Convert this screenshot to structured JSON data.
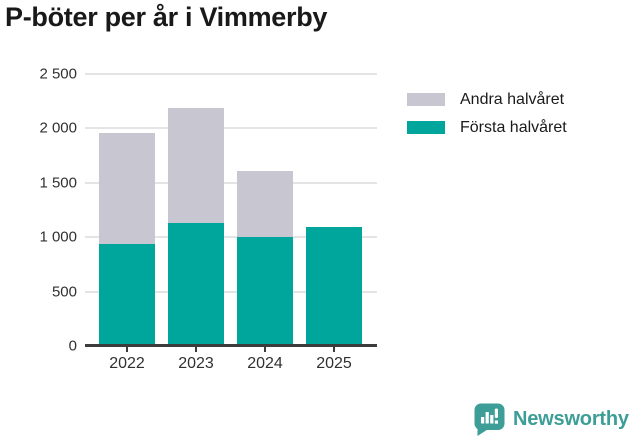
{
  "title": "P-böter per år i Vimmerby",
  "colors": {
    "first_half": "#00a59c",
    "second_half": "#c8c6d1",
    "grid": "#e4e4e4",
    "axis": "#3c3c3c",
    "logo_teal": "#3d9e97"
  },
  "legend": [
    {
      "label": "Andra halvåret",
      "color": "#c8c6d1"
    },
    {
      "label": "Första halvåret",
      "color": "#00a59c"
    }
  ],
  "footer": {
    "brand": "Newsworthy",
    "logo_icon": "newsworthy-speech-bubble-bar-chart-icon"
  },
  "chart_data": {
    "type": "bar",
    "stacked": true,
    "title": "P-böter per år i Vimmerby",
    "categories": [
      "2022",
      "2023",
      "2024",
      "2025"
    ],
    "series": [
      {
        "name": "Första halvåret",
        "color": "#00a59c",
        "values": [
          940,
          1130,
          1000,
          1090
        ]
      },
      {
        "name": "Andra halvåret",
        "color": "#c8c6d1",
        "values": [
          1015,
          1060,
          610,
          null
        ]
      }
    ],
    "totals": [
      1955,
      2190,
      1610,
      1090
    ],
    "xlabel": "",
    "ylabel": "",
    "ylim": [
      0,
      2500
    ],
    "yticks": [
      0,
      500,
      1000,
      1500,
      2000,
      2500
    ],
    "ytick_labels": [
      "0",
      "500",
      "1 000",
      "1 500",
      "2 000",
      "2 500"
    ],
    "grid": "horizontal",
    "legend_position": "right-top"
  }
}
